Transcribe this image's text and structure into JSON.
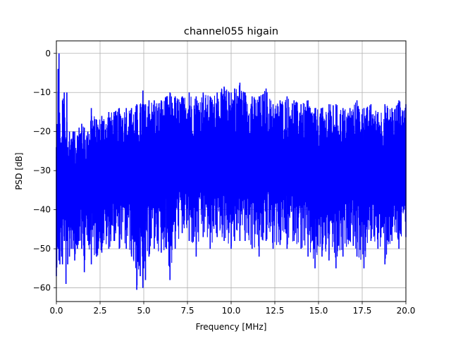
{
  "chart_data": {
    "type": "line",
    "title": "channel055 higain",
    "xlabel": "Frequency [MHz]",
    "ylabel": "PSD [dB]",
    "xlim": [
      0,
      20
    ],
    "ylim": [
      -63.5,
      3.2
    ],
    "xticks": [
      0,
      2.5,
      5,
      7.5,
      10,
      12.5,
      15,
      17.5,
      20
    ],
    "xtick_labels": [
      "0.0",
      "2.5",
      "5.0",
      "7.5",
      "10.0",
      "12.5",
      "15.0",
      "17.5",
      "20.0"
    ],
    "yticks": [
      0,
      -10,
      -20,
      -30,
      -40,
      -50,
      -60
    ],
    "ytick_labels": [
      "0",
      "−10",
      "−20",
      "−30",
      "−40",
      "−50",
      "−60"
    ],
    "grid": true,
    "legend": false,
    "series": [
      {
        "color": "#0000ff",
        "x": [
          0.0,
          0.1,
          0.15,
          0.2,
          0.3,
          0.35,
          0.45,
          0.55,
          0.6,
          0.65,
          0.75,
          0.85,
          0.95,
          1.05,
          1.2,
          1.3,
          1.45,
          1.6,
          1.8,
          2.0,
          2.3,
          2.6,
          3.0,
          3.3,
          3.6,
          4.0,
          4.3,
          4.6,
          4.8,
          4.95,
          5.0,
          5.1,
          5.3,
          5.6,
          6.0,
          6.3,
          6.5,
          6.8,
          7.2,
          7.6,
          8.0,
          8.4,
          8.8,
          9.2,
          9.6,
          10.0,
          10.2,
          10.5,
          10.8,
          11.2,
          11.6,
          12.0,
          12.4,
          12.8,
          13.2,
          13.6,
          14.0,
          14.4,
          14.8,
          15.2,
          15.6,
          16.0,
          16.4,
          16.8,
          17.2,
          17.6,
          18.0,
          18.4,
          18.8,
          19.2,
          19.6,
          20.0
        ],
        "y_upper": [
          -24,
          -4,
          0,
          -18,
          -24,
          -12,
          -10,
          -22,
          -10,
          -24,
          -20,
          -22,
          -20,
          -20,
          -21,
          -19,
          -18,
          -19,
          -20,
          -14,
          -17,
          -16,
          -15,
          -15,
          -14,
          -14,
          -14,
          -13,
          -13,
          -9.5,
          -13,
          -13,
          -12,
          -12,
          -12,
          -11,
          -10,
          -11,
          -11,
          -10,
          -11,
          -10,
          -11,
          -10,
          -8.5,
          -10,
          -9,
          -7.5,
          -10,
          -11,
          -11,
          -9,
          -13,
          -12,
          -11,
          -12,
          -13,
          -12,
          -14,
          -14,
          -13,
          -13,
          -14,
          -14,
          -12,
          -14,
          -13,
          -15,
          -13,
          -14,
          -12,
          -13
        ],
        "y_lower": [
          -57,
          -50,
          -53,
          -54,
          -52,
          -54,
          -48,
          -59,
          -48,
          -54,
          -52,
          -50,
          -50,
          -53,
          -50,
          -48,
          -50,
          -56,
          -48,
          -54,
          -52,
          -51,
          -50,
          -48,
          -50,
          -50,
          -52,
          -60.5,
          -57,
          -60,
          -55,
          -58,
          -52,
          -50,
          -51,
          -50,
          -58,
          -50,
          -46,
          -48,
          -52,
          -47,
          -50,
          -47,
          -48,
          -50,
          -48,
          -48,
          -48,
          -50,
          -52,
          -48,
          -50,
          -49,
          -50,
          -48,
          -50,
          -52,
          -55,
          -52,
          -53,
          -55,
          -52,
          -48,
          -52,
          -55,
          -48,
          -50,
          -54,
          -48,
          -50,
          -47
        ]
      }
    ]
  }
}
